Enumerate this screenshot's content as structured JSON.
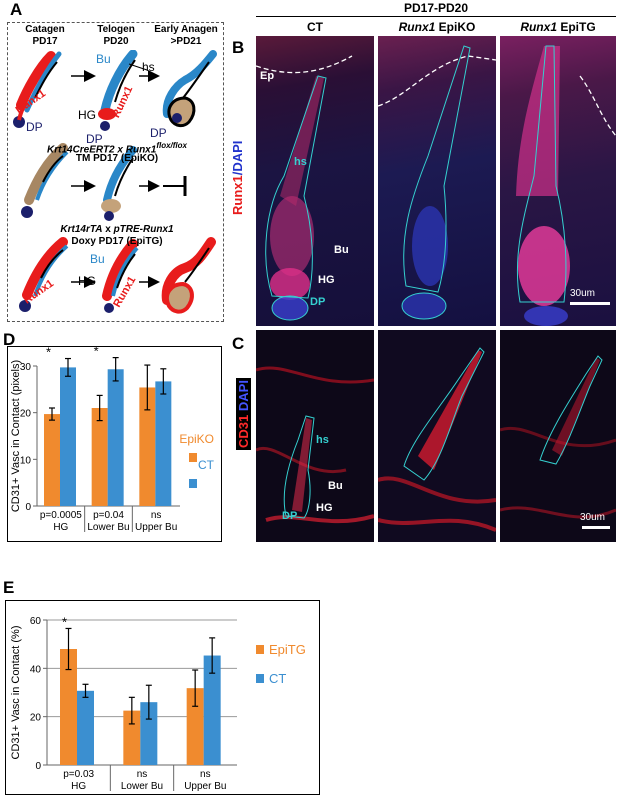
{
  "panel_labels": {
    "a": "A",
    "b": "B",
    "c": "C",
    "d": "D",
    "e": "E"
  },
  "schematic": {
    "stages": [
      {
        "name": "Catagen",
        "sub": "PD17"
      },
      {
        "name": "Telogen",
        "sub": "PD20"
      },
      {
        "name": "Early Anagen",
        "sub": ">PD21"
      }
    ],
    "labels": {
      "bu": "Bu",
      "hs": "hs",
      "hg": "HG",
      "dp": "DP",
      "runx1": "Runx1"
    },
    "epiko_title": "Krt14CreERT2 x Runx1",
    "epiko_sup": "flox/flox",
    "epiko_sub": "TM PD17 (EpiKO)",
    "epitg_title_a": "Krt14rTA",
    "epitg_title_b": " x ",
    "epitg_title_c": "pTRE-Runx1",
    "epitg_sub": "Doxy PD17 (EpiTG)"
  },
  "micrographs": {
    "header": "PD17-PD20",
    "cols": [
      {
        "gene": "",
        "name": "CT"
      },
      {
        "gene": "Runx1",
        "name": " EpiKO"
      },
      {
        "gene": "Runx1",
        "name": " EpiTG"
      }
    ],
    "b_side_label_red": "Runx1",
    "b_side_label_blue": "/DAPI",
    "c_side_label_red": "CD31",
    "c_side_label_blue": "DAPI",
    "labels": {
      "ep": "Ep",
      "hs": "hs",
      "bu": "Bu",
      "hg": "HG",
      "dp": "DP"
    },
    "scale": "30um"
  },
  "chart_data": [
    {
      "type": "bar",
      "panel": "D",
      "ylabel": "CD31+ Vasc in Contact (pixels)",
      "ylim": [
        0,
        30
      ],
      "yticks": [
        0,
        10,
        20,
        30
      ],
      "categories": [
        "HG",
        "Lower Bu",
        "Upper Bu"
      ],
      "pvalues": [
        "p=0.0005",
        "p=0.04",
        "ns"
      ],
      "significance": [
        "*",
        "*",
        ""
      ],
      "series": [
        {
          "name": "EpiKO",
          "color": "#F08A2E",
          "values": [
            19.7,
            21.0,
            25.4
          ],
          "errors": [
            1.3,
            2.7,
            4.8
          ]
        },
        {
          "name": "CT",
          "color": "#3B8FD0",
          "values": [
            29.7,
            29.3,
            26.7
          ],
          "errors": [
            1.9,
            2.5,
            2.7
          ]
        }
      ]
    },
    {
      "type": "bar",
      "panel": "E",
      "ylabel": "CD31+ Vasc in Contact (%)",
      "ylim": [
        0,
        60
      ],
      "yticks": [
        0,
        20,
        40,
        60
      ],
      "categories": [
        "HG",
        "Lower Bu",
        "Upper Bu"
      ],
      "pvalues": [
        "p=0.03",
        "ns",
        "ns"
      ],
      "significance": [
        "*",
        "",
        ""
      ],
      "series": [
        {
          "name": "EpiTG",
          "color": "#F08A2E",
          "values": [
            48.0,
            22.5,
            31.8
          ],
          "errors": [
            8.5,
            5.5,
            7.5
          ]
        },
        {
          "name": "CT",
          "color": "#3B8FD0",
          "values": [
            30.7,
            26.0,
            45.3
          ],
          "errors": [
            2.7,
            7.0,
            7.3
          ]
        }
      ]
    }
  ]
}
